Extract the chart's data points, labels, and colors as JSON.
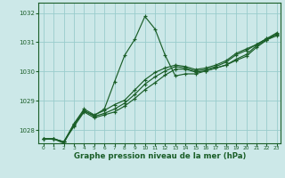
{
  "bg_color": "#cce8e8",
  "grid_color": "#99cccc",
  "line_color": "#1a5e28",
  "title": "Graphe pression niveau de la mer (hPa)",
  "xlim": [
    -0.5,
    23.4
  ],
  "ylim": [
    1027.55,
    1032.35
  ],
  "yticks": [
    1028,
    1029,
    1030,
    1031,
    1032
  ],
  "xticks": [
    0,
    1,
    2,
    3,
    4,
    5,
    6,
    7,
    8,
    9,
    10,
    11,
    12,
    13,
    14,
    15,
    16,
    17,
    18,
    19,
    20,
    21,
    22,
    23
  ],
  "series": [
    [
      1027.7,
      1027.7,
      1027.55,
      1028.2,
      1028.65,
      1028.5,
      1028.72,
      1029.65,
      1030.55,
      1031.1,
      1031.88,
      1031.45,
      1030.55,
      1029.85,
      1029.92,
      1029.92,
      1030.02,
      1030.12,
      1030.22,
      1030.38,
      1030.52,
      1030.82,
      1031.07,
      1031.28
    ],
    [
      1027.7,
      1027.7,
      1027.6,
      1028.12,
      1028.62,
      1028.42,
      1028.52,
      1028.62,
      1028.82,
      1029.08,
      1029.38,
      1029.62,
      1029.88,
      1030.08,
      1030.08,
      1029.98,
      1030.02,
      1030.12,
      1030.22,
      1030.42,
      1030.58,
      1030.88,
      1031.08,
      1031.22
    ],
    [
      1027.7,
      1027.7,
      1027.6,
      1028.17,
      1028.67,
      1028.47,
      1028.57,
      1028.72,
      1028.92,
      1029.22,
      1029.57,
      1029.82,
      1030.02,
      1030.17,
      1030.12,
      1030.02,
      1030.07,
      1030.17,
      1030.32,
      1030.57,
      1030.72,
      1030.92,
      1031.12,
      1031.27
    ],
    [
      1027.7,
      1027.7,
      1027.6,
      1028.22,
      1028.72,
      1028.52,
      1028.67,
      1028.87,
      1029.02,
      1029.37,
      1029.72,
      1029.97,
      1030.12,
      1030.22,
      1030.17,
      1030.07,
      1030.12,
      1030.22,
      1030.37,
      1030.62,
      1030.77,
      1030.92,
      1031.12,
      1031.32
    ]
  ]
}
